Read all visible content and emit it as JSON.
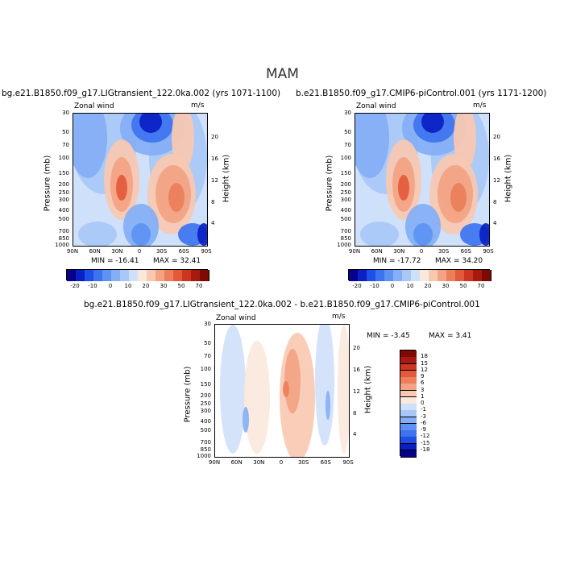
{
  "page": {
    "season": "MAM"
  },
  "chart_data": [
    {
      "type": "heatmap",
      "title": "bg.e21.B1850.f09_g17.LIGtransient_122.0ka.002 (yrs 1071-1100)",
      "left_label": "Zonal wind",
      "right_label": "m/s",
      "xlabel": "",
      "ylabel": "Pressure (mb)",
      "y2label": "Height (km)",
      "x_ticks": [
        "90N",
        "60N",
        "30N",
        "0",
        "30S",
        "60S",
        "90S"
      ],
      "y_ticks": [
        "30",
        "50",
        "70",
        "100",
        "150",
        "200",
        "250",
        "300",
        "400",
        "500",
        "700",
        "850",
        "1000"
      ],
      "y2_ticks": [
        "20",
        "16",
        "12",
        "8",
        "4"
      ],
      "min_text": "MIN = -16.41",
      "max_text": "MAX = 32.41",
      "colorbar_labels": [
        "-20",
        "-10",
        "0",
        "10",
        "20",
        "30",
        "50",
        "70"
      ],
      "colors": [
        "#08008a",
        "#0a1fc4",
        "#1f4fe6",
        "#3d73f0",
        "#5d92f3",
        "#84aef5",
        "#a9c8f7",
        "#cfe0fa",
        "#fbe8dd",
        "#f8c8b0",
        "#f3a383",
        "#ec7e5a",
        "#e25a3a",
        "#cc3521",
        "#a81a10",
        "#7e0a06"
      ],
      "min": -16.41,
      "max": 32.41
    },
    {
      "type": "heatmap",
      "title": "b.e21.B1850.f09_g17.CMIP6-piControl.001 (yrs 1171-1200)",
      "left_label": "Zonal wind",
      "right_label": "m/s",
      "xlabel": "",
      "ylabel": "Pressure (mb)",
      "y2label": "Height (km)",
      "x_ticks": [
        "90N",
        "60N",
        "30N",
        "0",
        "30S",
        "60S",
        "90S"
      ],
      "y_ticks": [
        "30",
        "50",
        "70",
        "100",
        "150",
        "200",
        "250",
        "300",
        "400",
        "500",
        "700",
        "850",
        "1000"
      ],
      "y2_ticks": [
        "20",
        "16",
        "12",
        "8",
        "4"
      ],
      "min_text": "MIN = -17.72",
      "max_text": "MAX = 34.20",
      "colorbar_labels": [
        "-20",
        "-10",
        "0",
        "10",
        "20",
        "30",
        "50",
        "70"
      ],
      "colors": [
        "#08008a",
        "#0a1fc4",
        "#1f4fe6",
        "#3d73f0",
        "#5d92f3",
        "#84aef5",
        "#a9c8f7",
        "#cfe0fa",
        "#fbe8dd",
        "#f8c8b0",
        "#f3a383",
        "#ec7e5a",
        "#e25a3a",
        "#cc3521",
        "#a81a10",
        "#7e0a06"
      ],
      "min": -17.72,
      "max": 34.2
    },
    {
      "type": "heatmap",
      "title": "bg.e21.B1850.f09_g17.LIGtransient_122.0ka.002 - b.e21.B1850.f09_g17.CMIP6-piControl.001",
      "left_label": "Zonal wind",
      "right_label": "m/s",
      "xlabel": "",
      "ylabel": "Pressure (mb)",
      "y2label": "Height (km)",
      "x_ticks": [
        "90N",
        "60N",
        "30N",
        "0",
        "30S",
        "60S",
        "90S"
      ],
      "y_ticks": [
        "30",
        "50",
        "70",
        "100",
        "150",
        "200",
        "250",
        "300",
        "400",
        "500",
        "700",
        "850",
        "1000"
      ],
      "y2_ticks": [
        "20",
        "16",
        "12",
        "8",
        "4"
      ],
      "min_text": "MIN = -3.45",
      "max_text": "MAX = 3.41",
      "colorbar_labels": [
        "18",
        "15",
        "12",
        "9",
        "6",
        "3",
        "1",
        "0",
        "-1",
        "-3",
        "-6",
        "-9",
        "-12",
        "-15",
        "-18"
      ],
      "colors": [
        "#7e0a06",
        "#a81a10",
        "#cc3521",
        "#e25a3a",
        "#ec7e5a",
        "#f3a383",
        "#f8c8b0",
        "#fbe8dd",
        "#cfe0fa",
        "#a9c8f7",
        "#84aef5",
        "#5d92f3",
        "#3d73f0",
        "#1f4fe6",
        "#0a1fc4",
        "#08008a"
      ],
      "min": -3.45,
      "max": 3.41
    }
  ]
}
